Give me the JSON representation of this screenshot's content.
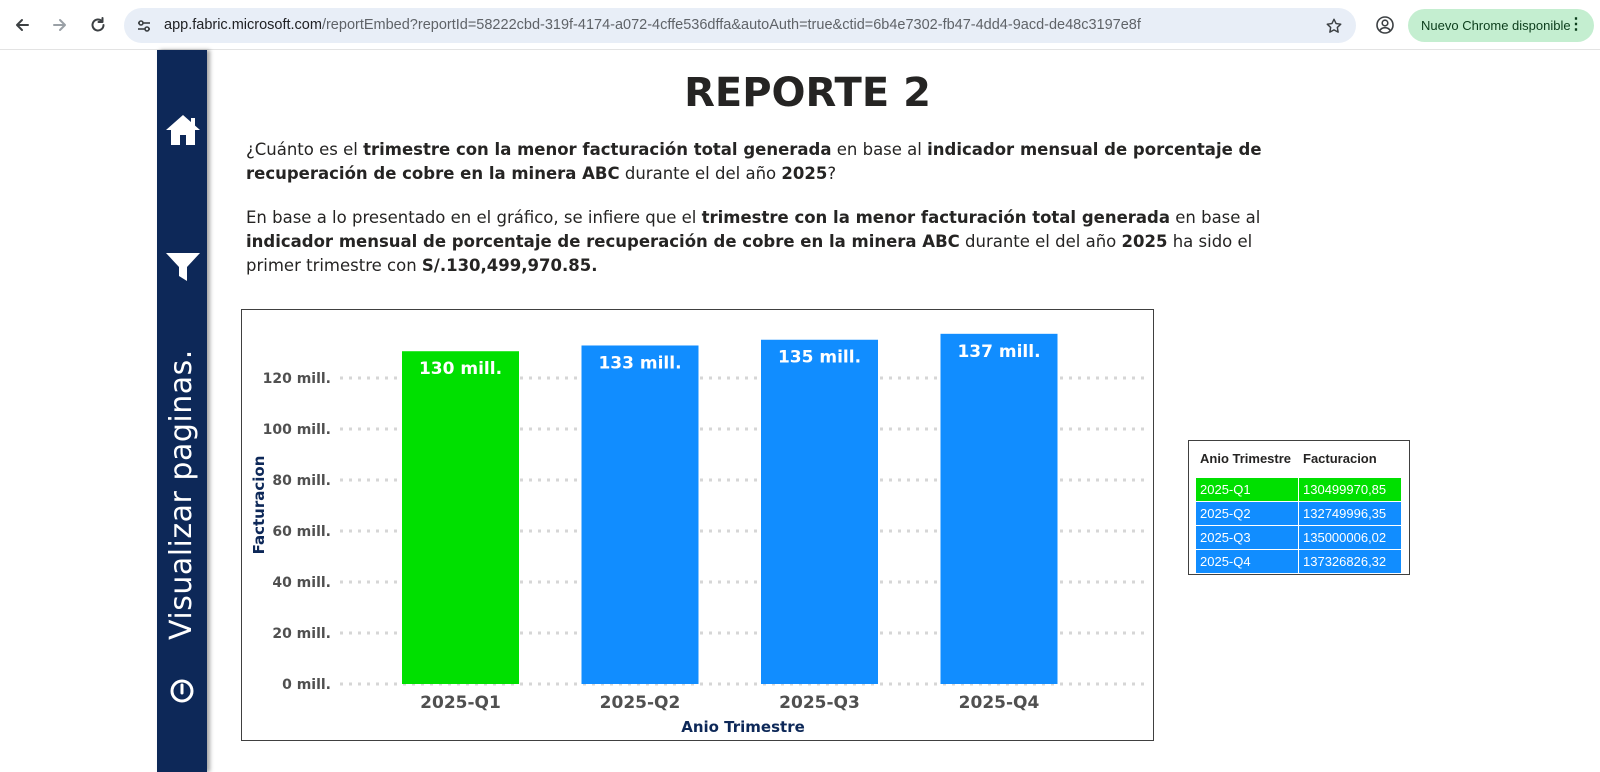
{
  "browser": {
    "url_host": "app.fabric.microsoft.com",
    "url_path": "/reportEmbed?reportId=58222cbd-319f-4174-a072-4cffe536dffa&autoAuth=true&ctid=6b4e7302-fb47-4dd4-9acd-de48c3197e8f",
    "update_label": "Nuevo Chrome disponible",
    "icons": [
      "back-arrow-icon",
      "forward-arrow-icon",
      "reload-icon",
      "site-settings-icon",
      "star-icon",
      "profile-icon",
      "more-vert-icon"
    ]
  },
  "sidebar": {
    "label": "Visualizar paginas.",
    "icons": [
      "home-icon",
      "filter-icon",
      "power-icon"
    ],
    "color": "#0d2858"
  },
  "report": {
    "title": "REPORTE 2",
    "question": {
      "t1": "¿Cuánto es el ",
      "b1": "trimestre con la menor facturación total generada",
      "t2": " en base al ",
      "b2": "indicador mensual de porcentaje de recuperación de cobre en la minera ABC",
      "t3": " durante el del año ",
      "b3": "2025",
      "t4": "?"
    },
    "answer": {
      "t1": "En base a lo presentado en el gráfico, se infiere que el ",
      "b1": "trimestre con la menor facturación total generada",
      "t2": " en base al ",
      "b2": "indicador mensual de porcentaje de recuperación de cobre en la minera ABC",
      "t3": " durante el del año ",
      "b3": "2025",
      "t4": " ha sido el primer trimestre con ",
      "b4": "S/.130,499,970.85."
    }
  },
  "chart_data": {
    "type": "bar",
    "categories": [
      "2025-Q1",
      "2025-Q2",
      "2025-Q3",
      "2025-Q4"
    ],
    "values": [
      130499970.85,
      132749996.35,
      135000006.02,
      137326826.32
    ],
    "data_labels": [
      "130 mill.",
      "133 mill.",
      "135 mill.",
      "137 mill."
    ],
    "bar_colors": [
      "#00e000",
      "#118dff",
      "#118dff",
      "#118dff"
    ],
    "xlabel": "Anio Trimestre",
    "ylabel": "Facturacion",
    "ylim": [
      0,
      140000000
    ],
    "yticks": [
      0,
      20000000,
      40000000,
      60000000,
      80000000,
      100000000,
      120000000
    ],
    "ytick_labels": [
      "0 mill.",
      "20 mill.",
      "40 mill.",
      "60 mill.",
      "80 mill.",
      "100 mill.",
      "120 mill."
    ],
    "grid": true
  },
  "table": {
    "headers": [
      "Anio Trimestre",
      "Facturacion"
    ],
    "rows": [
      {
        "trimestre": "2025-Q1",
        "facturacion": "130499970,85",
        "color": "#00e000"
      },
      {
        "trimestre": "2025-Q2",
        "facturacion": "132749996,35",
        "color": "#118dff"
      },
      {
        "trimestre": "2025-Q3",
        "facturacion": "135000006,02",
        "color": "#118dff"
      },
      {
        "trimestre": "2025-Q4",
        "facturacion": "137326826,32",
        "color": "#118dff"
      }
    ]
  }
}
